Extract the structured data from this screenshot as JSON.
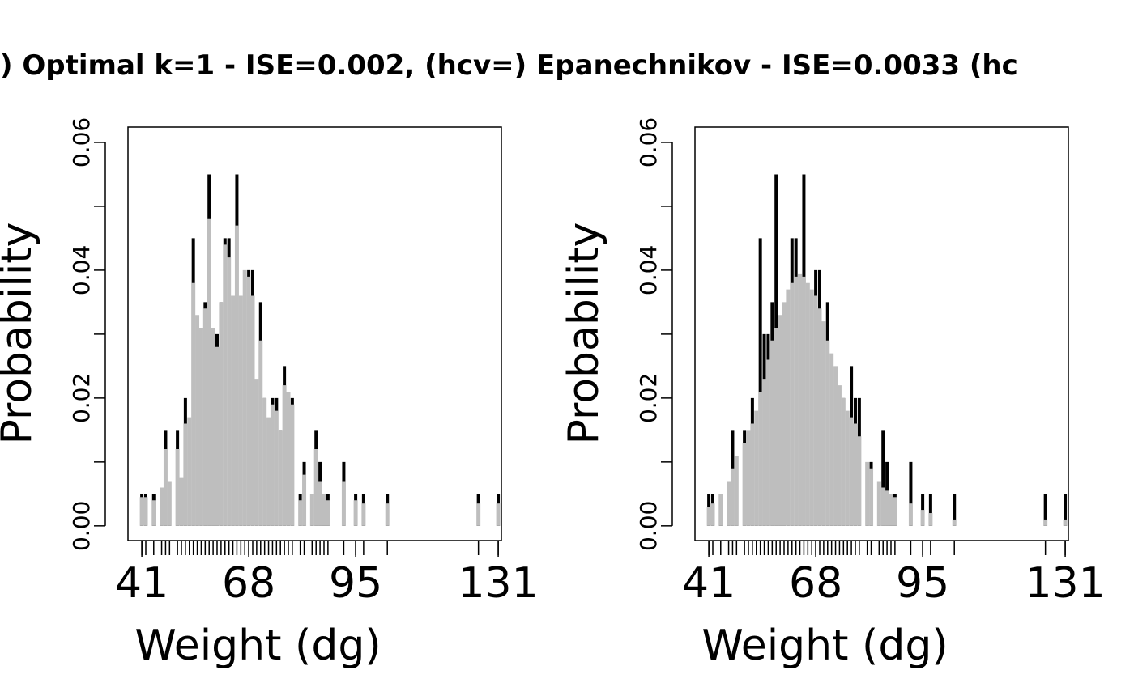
{
  "title": ") Optimal k=1 - ISE=0.002, (hcv=) Epanechnikov - ISE=0.0033  (hc",
  "chart_data": [
    {
      "type": "spike",
      "xlabel": "Weight (dg)",
      "ylabel": "Probability",
      "x": [
        41,
        42,
        44,
        46,
        47,
        48,
        50,
        51,
        52,
        53,
        54,
        55,
        56,
        57,
        58,
        59,
        60,
        61,
        62,
        63,
        64,
        65,
        66,
        67,
        68,
        69,
        70,
        71,
        72,
        73,
        74,
        75,
        76,
        77,
        78,
        79,
        81,
        82,
        84,
        85,
        86,
        87,
        88,
        92,
        95,
        97,
        103,
        126,
        131
      ],
      "series": [
        {
          "name": "empirical",
          "color": "#000000",
          "values": [
            0.005,
            0.005,
            0.005,
            0.005,
            0.015,
            0.005,
            0.015,
            0.005,
            0.02,
            0.015,
            0.045,
            0.03,
            0.03,
            0.035,
            0.055,
            0.03,
            0.03,
            0.035,
            0.045,
            0.045,
            0.035,
            0.055,
            0.035,
            0.035,
            0.04,
            0.04,
            0.02,
            0.035,
            0.02,
            0.015,
            0.02,
            0.02,
            0.015,
            0.025,
            0.02,
            0.02,
            0.005,
            0.01,
            0.005,
            0.015,
            0.01,
            0.005,
            0.005,
            0.01,
            0.005,
            0.005,
            0.005,
            0.005,
            0.005
          ]
        },
        {
          "name": "estimate",
          "color": "#bebebe",
          "values": [
            0.0045,
            0.0045,
            0.004,
            0.006,
            0.012,
            0.007,
            0.012,
            0.0075,
            0.016,
            0.017,
            0.038,
            0.033,
            0.031,
            0.034,
            0.048,
            0.031,
            0.028,
            0.035,
            0.044,
            0.042,
            0.036,
            0.047,
            0.036,
            0.04,
            0.039,
            0.036,
            0.023,
            0.029,
            0.02,
            0.017,
            0.019,
            0.018,
            0.015,
            0.022,
            0.021,
            0.019,
            0.004,
            0.008,
            0.005,
            0.012,
            0.007,
            0.005,
            0.004,
            0.007,
            0.004,
            0.0035,
            0.0035,
            0.0035,
            0.0035
          ]
        }
      ],
      "xlim": [
        37.5,
        131.8
      ],
      "xticks": [
        41,
        68,
        95,
        131
      ],
      "ylim": [
        -0.0023,
        0.0624
      ],
      "yticks": [
        {
          "value": 0,
          "label": "0.00"
        },
        0.02,
        0.04,
        0.06
      ],
      "yticks_minor": [
        0.01,
        0.03,
        0.05
      ]
    },
    {
      "type": "spike",
      "xlabel": "Weight (dg)",
      "ylabel": "Probability",
      "x": [
        41,
        42,
        44,
        46,
        47,
        48,
        50,
        51,
        52,
        53,
        54,
        55,
        56,
        57,
        58,
        59,
        60,
        61,
        62,
        63,
        64,
        65,
        66,
        67,
        68,
        69,
        70,
        71,
        72,
        73,
        74,
        75,
        76,
        77,
        78,
        79,
        81,
        82,
        84,
        85,
        86,
        87,
        88,
        92,
        95,
        97,
        103,
        126,
        131
      ],
      "series": [
        {
          "name": "empirical",
          "color": "#000000",
          "values": [
            0.005,
            0.005,
            0.005,
            0.005,
            0.015,
            0.005,
            0.015,
            0.005,
            0.02,
            0.015,
            0.045,
            0.03,
            0.03,
            0.035,
            0.055,
            0.03,
            0.03,
            0.035,
            0.045,
            0.045,
            0.035,
            0.055,
            0.035,
            0.035,
            0.04,
            0.04,
            0.02,
            0.035,
            0.02,
            0.015,
            0.02,
            0.02,
            0.015,
            0.025,
            0.02,
            0.02,
            0.005,
            0.01,
            0.005,
            0.015,
            0.01,
            0.005,
            0.005,
            0.01,
            0.005,
            0.005,
            0.005,
            0.005,
            0.005
          ]
        },
        {
          "name": "estimate",
          "color": "#bebebe",
          "values": [
            0.003,
            0.0035,
            0.005,
            0.007,
            0.009,
            0.011,
            0.013,
            0.015,
            0.016,
            0.018,
            0.021,
            0.023,
            0.026,
            0.029,
            0.031,
            0.033,
            0.035,
            0.037,
            0.038,
            0.039,
            0.0395,
            0.039,
            0.038,
            0.037,
            0.036,
            0.034,
            0.032,
            0.029,
            0.027,
            0.025,
            0.022,
            0.02,
            0.018,
            0.017,
            0.016,
            0.014,
            0.01,
            0.009,
            0.007,
            0.006,
            0.0055,
            0.005,
            0.0045,
            0.0035,
            0.0025,
            0.002,
            0.001,
            0.001,
            0.001
          ]
        }
      ],
      "xlim": [
        37.5,
        131.8
      ],
      "xticks": [
        41,
        68,
        95,
        131
      ],
      "ylim": [
        -0.0023,
        0.0624
      ],
      "yticks": [
        {
          "value": 0,
          "label": "0.00"
        },
        0.02,
        0.04,
        0.06
      ],
      "yticks_minor": [
        0.01,
        0.03,
        0.05
      ]
    }
  ]
}
